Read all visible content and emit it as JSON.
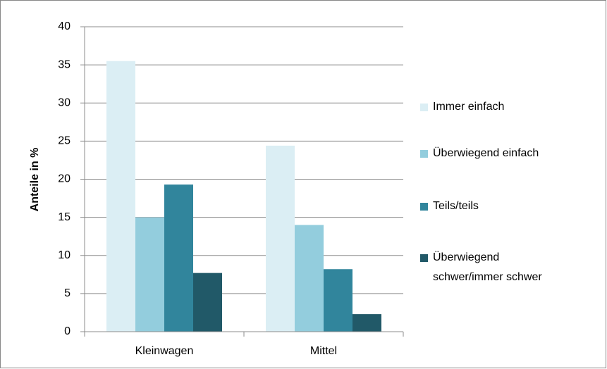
{
  "chart_data": {
    "type": "bar",
    "categories": [
      "Kleinwagen",
      "Mittel"
    ],
    "series": [
      {
        "name": "Immer einfach",
        "color": "#dbeef4",
        "values": [
          35.5,
          24.4
        ]
      },
      {
        "name": "Überwiegend einfach",
        "color": "#93cddd",
        "values": [
          15,
          14
        ]
      },
      {
        "name": "Teils/teils",
        "color": "#31859c",
        "values": [
          19.3,
          8.2
        ]
      },
      {
        "name": "Überwiegend schwer/immer schwer",
        "color": "#215968",
        "values": [
          7.7,
          2.3
        ]
      }
    ],
    "ylabel": "Anteile in %",
    "ylim": [
      0,
      40
    ],
    "yticks": [
      0,
      5,
      10,
      15,
      20,
      25,
      30,
      35,
      40
    ],
    "grid": true,
    "legend": "right"
  }
}
